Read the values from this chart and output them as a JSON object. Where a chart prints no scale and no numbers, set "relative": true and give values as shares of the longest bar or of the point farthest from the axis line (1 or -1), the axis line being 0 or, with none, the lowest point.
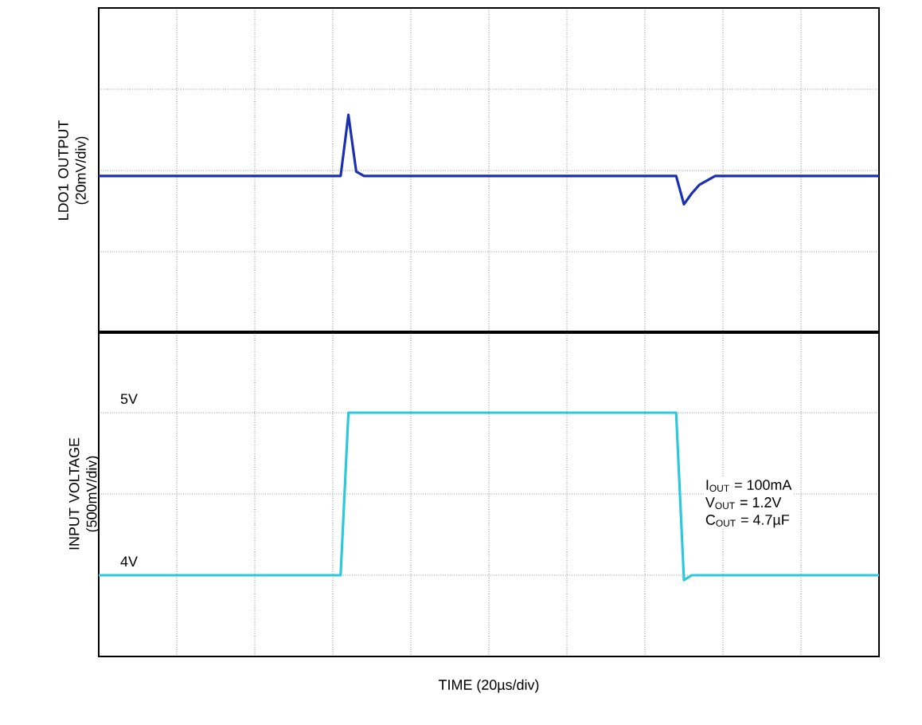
{
  "chart_data": [
    {
      "type": "line",
      "ylabel": "LDO1 OUTPUT (20mV/div)",
      "relative": true,
      "grid": true,
      "tick_labels": false,
      "marker": "none",
      "line_style": "solid",
      "categories": [
        null,
        null,
        null,
        null,
        null,
        null,
        null,
        null,
        null,
        null,
        null,
        null,
        null,
        null,
        null,
        null,
        null,
        null,
        null,
        null,
        null,
        null,
        null,
        null,
        null,
        null,
        null,
        null,
        null,
        null,
        null,
        null,
        null,
        null,
        null,
        null,
        null,
        null,
        null,
        null,
        null,
        null,
        null,
        null,
        null,
        null,
        null,
        null,
        null,
        null,
        null,
        null,
        null,
        null,
        null,
        null,
        null,
        null,
        null,
        null,
        null,
        null,
        null,
        null,
        null,
        null,
        null,
        null,
        null,
        null,
        null,
        null,
        null,
        null,
        null,
        null,
        null,
        null,
        null,
        null,
        null,
        null,
        null,
        null,
        null,
        null,
        null,
        null,
        null,
        null,
        null,
        null,
        null,
        null,
        null,
        null,
        null,
        null,
        null,
        null,
        null
      ],
      "series": [
        {
          "color": "#1a2fb4",
          "values": [
            0.72,
            0.72,
            0.72,
            0.72,
            0.72,
            0.72,
            0.72,
            0.72,
            0.72,
            0.72,
            0.72,
            0.72,
            0.72,
            0.72,
            0.72,
            0.72,
            0.72,
            0.72,
            0.72,
            0.72,
            0.72,
            0.72,
            0.72,
            0.72,
            0.72,
            0.72,
            0.72,
            0.72,
            0.72,
            0.72,
            0.72,
            0.72,
            1,
            0.74,
            0.72,
            0.72,
            0.72,
            0.72,
            0.72,
            0.72,
            0.72,
            0.72,
            0.72,
            0.72,
            0.72,
            0.72,
            0.72,
            0.72,
            0.72,
            0.72,
            0.72,
            0.72,
            0.72,
            0.72,
            0.72,
            0.72,
            0.72,
            0.72,
            0.72,
            0.72,
            0.72,
            0.72,
            0.72,
            0.72,
            0.72,
            0.72,
            0.72,
            0.72,
            0.72,
            0.72,
            0.72,
            0.72,
            0.72,
            0.72,
            0.72,
            0.59,
            0.64,
            0.68,
            0.7,
            0.72,
            0.72,
            0.72,
            0.72,
            0.72,
            0.72,
            0.72,
            0.72,
            0.72,
            0.72,
            0.72,
            0.72,
            0.72,
            0.72,
            0.72,
            0.72,
            0.72,
            0.72,
            0.72,
            0.72,
            0.72,
            0.72
          ]
        }
      ]
    },
    {
      "type": "line",
      "ylabel": "INPUT VOLTAGE (500mV/div)",
      "xlabel": "TIME (20µs/div)",
      "grid": true,
      "tick_labels": "y",
      "marker": "none",
      "line_style": "solid",
      "ylim": [
        3.5,
        5.5
      ],
      "yticks": [
        {
          "value": 3.5,
          "label": null
        },
        {
          "value": 4,
          "label": "4V"
        },
        {
          "value": 4.5,
          "label": null
        },
        {
          "value": 5,
          "label": "5V"
        },
        {
          "value": 5.5,
          "label": null
        }
      ],
      "annotations": [
        "I$_{OUT}$ = 100mA",
        "V$_{OUT}$ = 1.2V",
        "C$_{OUT}$ = 4.7µF"
      ],
      "categories": [
        null,
        null,
        null,
        null,
        null,
        null,
        null,
        null,
        null,
        null,
        null,
        null,
        null,
        null,
        null,
        null,
        null,
        null,
        null,
        null,
        null,
        null,
        null,
        null,
        null,
        null,
        null,
        null,
        null,
        null,
        null,
        null,
        null,
        null,
        null,
        null,
        null,
        null,
        null,
        null,
        null,
        null,
        null,
        null,
        null,
        null,
        null,
        null,
        null,
        null,
        null,
        null,
        null,
        null,
        null,
        null,
        null,
        null,
        null,
        null,
        null,
        null,
        null,
        null,
        null,
        null,
        null,
        null,
        null,
        null,
        null,
        null,
        null,
        null,
        null,
        null,
        null,
        null,
        null,
        null,
        null,
        null,
        null,
        null,
        null,
        null,
        null,
        null,
        null,
        null,
        null,
        null,
        null,
        null,
        null,
        null,
        null,
        null,
        null,
        null,
        null
      ],
      "series": [
        {
          "color": "#2cc9dc",
          "values": [
            4,
            4,
            4,
            4,
            4,
            4,
            4,
            4,
            4,
            4,
            4,
            4,
            4,
            4,
            4,
            4,
            4,
            4,
            4,
            4,
            4,
            4,
            4,
            4,
            4,
            4,
            4,
            4,
            4,
            4,
            4,
            4,
            5,
            5,
            5,
            5,
            5,
            5,
            5,
            5,
            5,
            5,
            5,
            5,
            5,
            5,
            5,
            5,
            5,
            5,
            5,
            5,
            5,
            5,
            5,
            5,
            5,
            5,
            5,
            5,
            5,
            5,
            5,
            5,
            5,
            5,
            5,
            5,
            5,
            5,
            5,
            5,
            5,
            5,
            5,
            3.97,
            4,
            4,
            4,
            4,
            4,
            4,
            4,
            4,
            4,
            4,
            4,
            4,
            4,
            4,
            4,
            4,
            4,
            4,
            4,
            4,
            4,
            4,
            4,
            4,
            4
          ]
        }
      ]
    }
  ]
}
